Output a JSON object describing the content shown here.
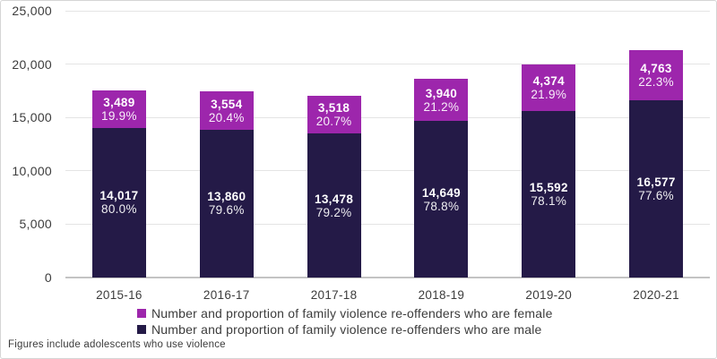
{
  "chart_data": {
    "type": "bar",
    "stacked": true,
    "categories": [
      "2015-16",
      "2016-17",
      "2017-18",
      "2018-19",
      "2019-20",
      "2020-21"
    ],
    "series": [
      {
        "name": "Number and proportion of family violence re-offenders who are female",
        "color": "#9D26AC",
        "values": [
          3489,
          3554,
          3518,
          3940,
          4374,
          4763
        ],
        "value_labels": [
          "3,489",
          "3,554",
          "3,518",
          "3,940",
          "4,374",
          "4,763"
        ],
        "percent_labels": [
          "19.9%",
          "20.4%",
          "20.7%",
          "21.2%",
          "21.9%",
          "22.3%"
        ]
      },
      {
        "name": "Number and proportion of family violence re-offenders who are male",
        "color": "#241A47",
        "values": [
          14017,
          13860,
          13478,
          14649,
          15592,
          16577
        ],
        "value_labels": [
          "14,017",
          "13,860",
          "13,478",
          "14,649",
          "15,592",
          "16,577"
        ],
        "percent_labels": [
          "80.0%",
          "79.6%",
          "79.2%",
          "78.8%",
          "78.1%",
          "77.6%"
        ]
      }
    ],
    "stack_order_bottom_to_top": [
      1,
      0
    ],
    "ylim": [
      0,
      25000
    ],
    "ytick_interval": 5000,
    "ytick_labels": [
      "0",
      "5,000",
      "10,000",
      "15,000",
      "20,000",
      "25,000"
    ],
    "grid": true,
    "legend_position": "bottom"
  },
  "footnote": "Figures include adolescents who use violence",
  "colors": {
    "female_series": "#9D26AC",
    "male_series": "#241A47",
    "gridline": "#E4E4E4",
    "zero_line": "#C3C3C3",
    "axis_text": "#3C3C3C",
    "bar_label_text": "#FFFFFF",
    "background": "#FFFFFF",
    "frame_border": "#D5D5D5"
  }
}
